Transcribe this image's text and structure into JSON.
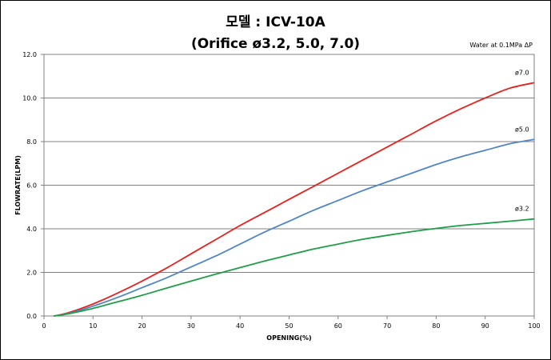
{
  "header": {
    "title_line1": "모델 : ICV-10A",
    "title_line2": "(Orifice ø3.2, 5.0, 7.0)",
    "condition_note": "Water at 0.1MPa ΔP"
  },
  "chart_data": {
    "type": "line",
    "xlabel": "OPENING(%)",
    "ylabel": "FLOWRATE(LPM)",
    "xlim": [
      0,
      100
    ],
    "ylim": [
      0,
      12
    ],
    "xticks": [
      0,
      10,
      20,
      30,
      40,
      50,
      60,
      70,
      80,
      90,
      100
    ],
    "yticks": [
      "0.0",
      "2.0",
      "4.0",
      "6.0",
      "8.0",
      "10.0",
      "12.0"
    ],
    "grid": "horizontal",
    "x": [
      2,
      5,
      10,
      15,
      20,
      25,
      30,
      35,
      40,
      45,
      50,
      55,
      60,
      65,
      70,
      75,
      80,
      85,
      90,
      95,
      100
    ],
    "series": [
      {
        "name": "ø7.0",
        "color": "#e8211d",
        "values": [
          0.0,
          0.15,
          0.55,
          1.05,
          1.6,
          2.2,
          2.85,
          3.5,
          4.15,
          4.75,
          5.35,
          5.95,
          6.55,
          7.15,
          7.75,
          8.35,
          8.95,
          9.5,
          10.0,
          10.45,
          10.7
        ]
      },
      {
        "name": "ø5.0",
        "color": "#4f86c6",
        "values": [
          0.0,
          0.12,
          0.45,
          0.85,
          1.3,
          1.75,
          2.25,
          2.75,
          3.3,
          3.85,
          4.35,
          4.85,
          5.3,
          5.75,
          6.15,
          6.55,
          6.95,
          7.3,
          7.6,
          7.9,
          8.1
        ]
      },
      {
        "name": "ø3.2",
        "color": "#1f9e48",
        "values": [
          0.0,
          0.1,
          0.35,
          0.65,
          0.95,
          1.28,
          1.6,
          1.92,
          2.22,
          2.52,
          2.8,
          3.07,
          3.3,
          3.52,
          3.7,
          3.87,
          4.02,
          4.15,
          4.25,
          4.35,
          4.45
        ]
      }
    ]
  }
}
